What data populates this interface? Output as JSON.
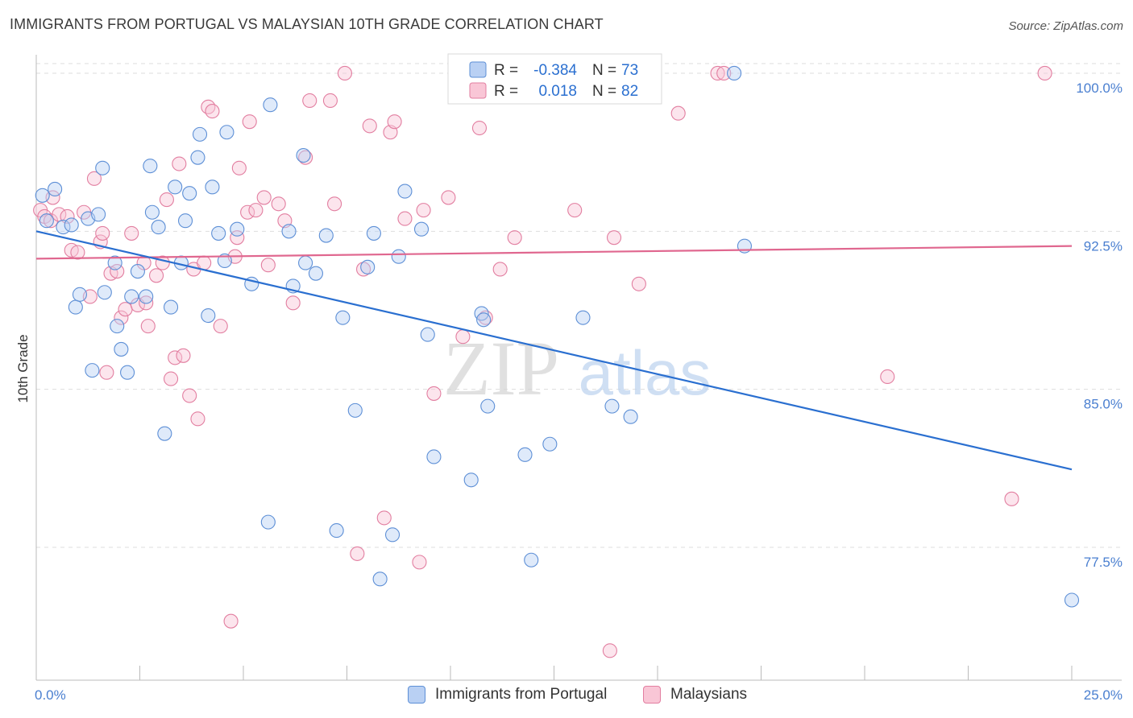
{
  "title": "IMMIGRANTS FROM PORTUGAL VS MALAYSIAN 10TH GRADE CORRELATION CHART",
  "source": "Source: ZipAtlas.com",
  "colors": {
    "blue_fill": "#b9d0f3",
    "blue_stroke": "#5d8fd6",
    "blue_line": "#2a6fd0",
    "pink_fill": "#f9c6d6",
    "pink_stroke": "#e27ea0",
    "pink_line": "#e0678f",
    "axis_text": "#4a7fd0",
    "grid": "#dddddd"
  },
  "stats_legend": [
    {
      "r_label": "R = ",
      "r_value": "-0.384",
      "n_label": "N = ",
      "n_value": "73",
      "color": "blue"
    },
    {
      "r_label": "R = ",
      "r_value": "0.018",
      "n_label": "N = ",
      "n_value": "82",
      "color": "pink"
    }
  ],
  "bottom_legend": [
    "Immigrants from Portugal",
    "Malaysians"
  ],
  "watermark": {
    "zip": "ZIP",
    "atlas": "atlas"
  },
  "chart_data": {
    "type": "scatter",
    "title": "IMMIGRANTS FROM PORTUGAL VS MALAYSIAN 10TH GRADE CORRELATION CHART",
    "xlabel": "",
    "ylabel": "10th Grade",
    "xlim": [
      0,
      25
    ],
    "ylim": [
      71.2,
      100.8
    ],
    "x_tick_labels": [
      "0.0%",
      "25.0%"
    ],
    "y_ticks": [
      77.5,
      85.0,
      92.5,
      100.0
    ],
    "y_tick_labels": [
      "77.5%",
      "85.0%",
      "92.5%",
      "100.0%"
    ],
    "grid": "horizontal dashed",
    "series": [
      {
        "name": "Immigrants from Portugal",
        "color": "blue",
        "trend": {
          "x": [
            0,
            25
          ],
          "y": [
            92.5,
            81.2
          ]
        },
        "points": [
          [
            0.15,
            94.2
          ],
          [
            0.25,
            93.0
          ],
          [
            0.45,
            94.5
          ],
          [
            0.65,
            92.7
          ],
          [
            0.85,
            92.8
          ],
          [
            0.95,
            88.9
          ],
          [
            1.05,
            89.5
          ],
          [
            1.25,
            93.1
          ],
          [
            1.35,
            85.9
          ],
          [
            1.5,
            93.3
          ],
          [
            1.6,
            95.5
          ],
          [
            1.65,
            89.6
          ],
          [
            1.9,
            91.0
          ],
          [
            1.95,
            88.0
          ],
          [
            2.05,
            86.9
          ],
          [
            2.2,
            85.8
          ],
          [
            2.3,
            89.4
          ],
          [
            2.45,
            90.6
          ],
          [
            2.65,
            89.4
          ],
          [
            2.75,
            95.6
          ],
          [
            2.8,
            93.4
          ],
          [
            2.95,
            92.7
          ],
          [
            3.1,
            82.9
          ],
          [
            3.25,
            88.9
          ],
          [
            3.35,
            94.6
          ],
          [
            3.5,
            91.0
          ],
          [
            3.6,
            93.0
          ],
          [
            3.7,
            94.3
          ],
          [
            3.9,
            96.0
          ],
          [
            3.95,
            97.1
          ],
          [
            4.15,
            88.5
          ],
          [
            4.25,
            94.6
          ],
          [
            4.4,
            92.4
          ],
          [
            4.55,
            91.1
          ],
          [
            4.6,
            97.2
          ],
          [
            4.85,
            92.6
          ],
          [
            5.2,
            90.0
          ],
          [
            5.6,
            78.7
          ],
          [
            5.65,
            98.5
          ],
          [
            6.1,
            92.5
          ],
          [
            6.2,
            89.9
          ],
          [
            6.45,
            96.1
          ],
          [
            6.5,
            91.0
          ],
          [
            6.75,
            90.5
          ],
          [
            7.0,
            92.3
          ],
          [
            7.25,
            78.3
          ],
          [
            7.4,
            88.4
          ],
          [
            7.7,
            84.0
          ],
          [
            8.0,
            90.8
          ],
          [
            8.15,
            92.4
          ],
          [
            8.3,
            76.0
          ],
          [
            8.6,
            78.1
          ],
          [
            8.75,
            91.3
          ],
          [
            8.9,
            94.4
          ],
          [
            9.3,
            92.6
          ],
          [
            9.45,
            87.6
          ],
          [
            9.6,
            81.8
          ],
          [
            10.5,
            80.7
          ],
          [
            10.75,
            88.6
          ],
          [
            10.8,
            88.3
          ],
          [
            10.9,
            84.2
          ],
          [
            11.8,
            81.9
          ],
          [
            11.95,
            76.9
          ],
          [
            12.4,
            82.4
          ],
          [
            13.2,
            88.4
          ],
          [
            13.9,
            84.2
          ],
          [
            14.25,
            100.0
          ],
          [
            14.35,
            83.7
          ],
          [
            16.85,
            100.0
          ],
          [
            17.1,
            91.8
          ],
          [
            25.0,
            75.0
          ]
        ]
      },
      {
        "name": "Malaysians",
        "color": "pink",
        "trend": {
          "x": [
            0,
            25
          ],
          "y": [
            91.2,
            91.8
          ]
        },
        "points": [
          [
            0.1,
            93.5
          ],
          [
            0.2,
            93.2
          ],
          [
            0.35,
            93.0
          ],
          [
            0.4,
            94.1
          ],
          [
            0.55,
            93.3
          ],
          [
            0.75,
            93.2
          ],
          [
            0.85,
            91.6
          ],
          [
            1.0,
            91.5
          ],
          [
            1.15,
            93.4
          ],
          [
            1.3,
            89.4
          ],
          [
            1.4,
            95.0
          ],
          [
            1.55,
            92.0
          ],
          [
            1.6,
            92.4
          ],
          [
            1.7,
            85.8
          ],
          [
            1.8,
            90.5
          ],
          [
            1.95,
            90.6
          ],
          [
            2.05,
            88.4
          ],
          [
            2.15,
            88.8
          ],
          [
            2.3,
            92.4
          ],
          [
            2.45,
            89.0
          ],
          [
            2.6,
            91.0
          ],
          [
            2.65,
            89.1
          ],
          [
            2.7,
            88.0
          ],
          [
            2.9,
            90.4
          ],
          [
            3.05,
            91.0
          ],
          [
            3.15,
            94.0
          ],
          [
            3.25,
            85.5
          ],
          [
            3.35,
            86.5
          ],
          [
            3.45,
            95.7
          ],
          [
            3.55,
            86.6
          ],
          [
            3.7,
            84.7
          ],
          [
            3.8,
            90.7
          ],
          [
            3.9,
            83.6
          ],
          [
            4.05,
            91.0
          ],
          [
            4.15,
            98.4
          ],
          [
            4.25,
            98.2
          ],
          [
            4.45,
            88.0
          ],
          [
            4.7,
            74.0
          ],
          [
            4.8,
            91.3
          ],
          [
            4.85,
            92.2
          ],
          [
            4.9,
            95.5
          ],
          [
            5.1,
            93.4
          ],
          [
            5.15,
            97.7
          ],
          [
            5.3,
            93.5
          ],
          [
            5.5,
            94.1
          ],
          [
            5.6,
            90.9
          ],
          [
            5.85,
            93.8
          ],
          [
            6.0,
            93.0
          ],
          [
            6.2,
            89.1
          ],
          [
            6.5,
            96.0
          ],
          [
            6.6,
            98.7
          ],
          [
            7.1,
            98.7
          ],
          [
            7.2,
            93.8
          ],
          [
            7.45,
            100.0
          ],
          [
            7.75,
            77.2
          ],
          [
            7.9,
            90.7
          ],
          [
            8.05,
            97.5
          ],
          [
            8.4,
            78.9
          ],
          [
            8.55,
            97.2
          ],
          [
            8.65,
            97.7
          ],
          [
            8.9,
            93.1
          ],
          [
            9.25,
            76.8
          ],
          [
            9.35,
            93.5
          ],
          [
            9.6,
            84.8
          ],
          [
            9.95,
            94.1
          ],
          [
            10.3,
            87.5
          ],
          [
            10.7,
            97.4
          ],
          [
            10.85,
            88.4
          ],
          [
            11.2,
            90.7
          ],
          [
            11.55,
            92.2
          ],
          [
            11.85,
            100.0
          ],
          [
            13.0,
            93.5
          ],
          [
            13.85,
            72.6
          ],
          [
            13.95,
            92.2
          ],
          [
            14.55,
            90.0
          ],
          [
            15.5,
            98.1
          ],
          [
            16.45,
            100.0
          ],
          [
            16.6,
            100.0
          ],
          [
            20.55,
            85.6
          ],
          [
            23.55,
            79.8
          ],
          [
            24.35,
            100.0
          ]
        ]
      }
    ]
  }
}
